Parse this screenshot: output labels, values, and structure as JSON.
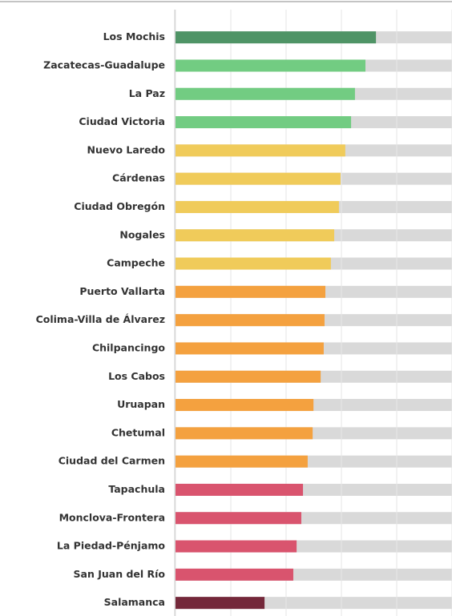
{
  "chart_data": {
    "type": "bar",
    "orientation": "horizontal",
    "categories": [
      "Los Mochis",
      "Zacatecas-Guadalupe",
      "La Paz",
      "Ciudad Victoria",
      "Nuevo Laredo",
      "Cárdenas",
      "Ciudad Obregón",
      "Nogales",
      "Campeche",
      "Puerto Vallarta",
      "Colima-Villa de Álvarez",
      "Chilpancingo",
      "Los Cabos",
      "Uruapan",
      "Chetumal",
      "Ciudad del Carmen",
      "Tapachula",
      "Monclova-Frontera",
      "La Piedad-Pénjamo",
      "San Juan del Río",
      "Salamanca"
    ],
    "values": [
      72.5,
      68.7,
      64.9,
      63.5,
      61.4,
      59.7,
      59.1,
      57.4,
      56.2,
      54.2,
      53.9,
      53.6,
      52.5,
      49.9,
      49.6,
      47.8,
      46.1,
      45.5,
      43.8,
      42.6,
      32.2
    ],
    "colors": [
      "#4f9466",
      "#72cc82",
      "#72cc82",
      "#72cc82",
      "#f0cb5a",
      "#f0cb5a",
      "#f0cb5a",
      "#f0cb5a",
      "#f0cb5a",
      "#f4a13f",
      "#f4a13f",
      "#f4a13f",
      "#f4a13f",
      "#f4a13f",
      "#f4a13f",
      "#f4a13f",
      "#d9546e",
      "#d9546e",
      "#d9546e",
      "#d9546e",
      "#74283a"
    ],
    "track_color": "#d9d9d9",
    "xlim": [
      0,
      100
    ],
    "xticks": [
      0,
      20,
      40,
      60,
      80,
      100
    ],
    "grid": true
  }
}
